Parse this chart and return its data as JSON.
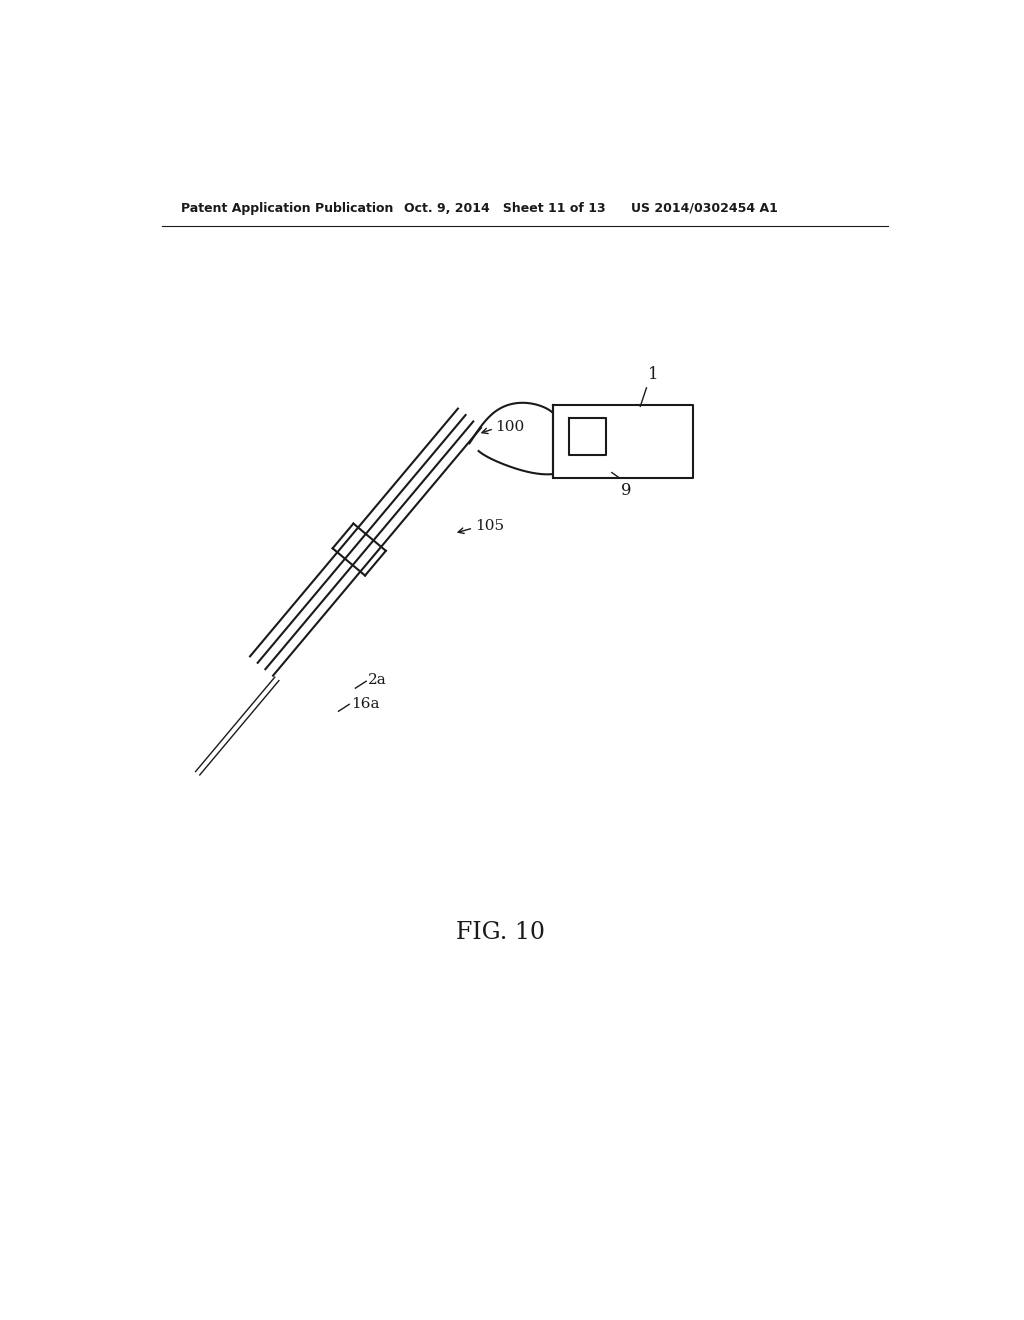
{
  "background_color": "#ffffff",
  "header_left": "Patent Application Publication",
  "header_mid": "Oct. 9, 2014   Sheet 11 of 13",
  "header_right": "US 2014/0302454 A1",
  "fig_label": "FIG. 10",
  "line_color": "#1a1a1a",
  "lw": 1.5
}
